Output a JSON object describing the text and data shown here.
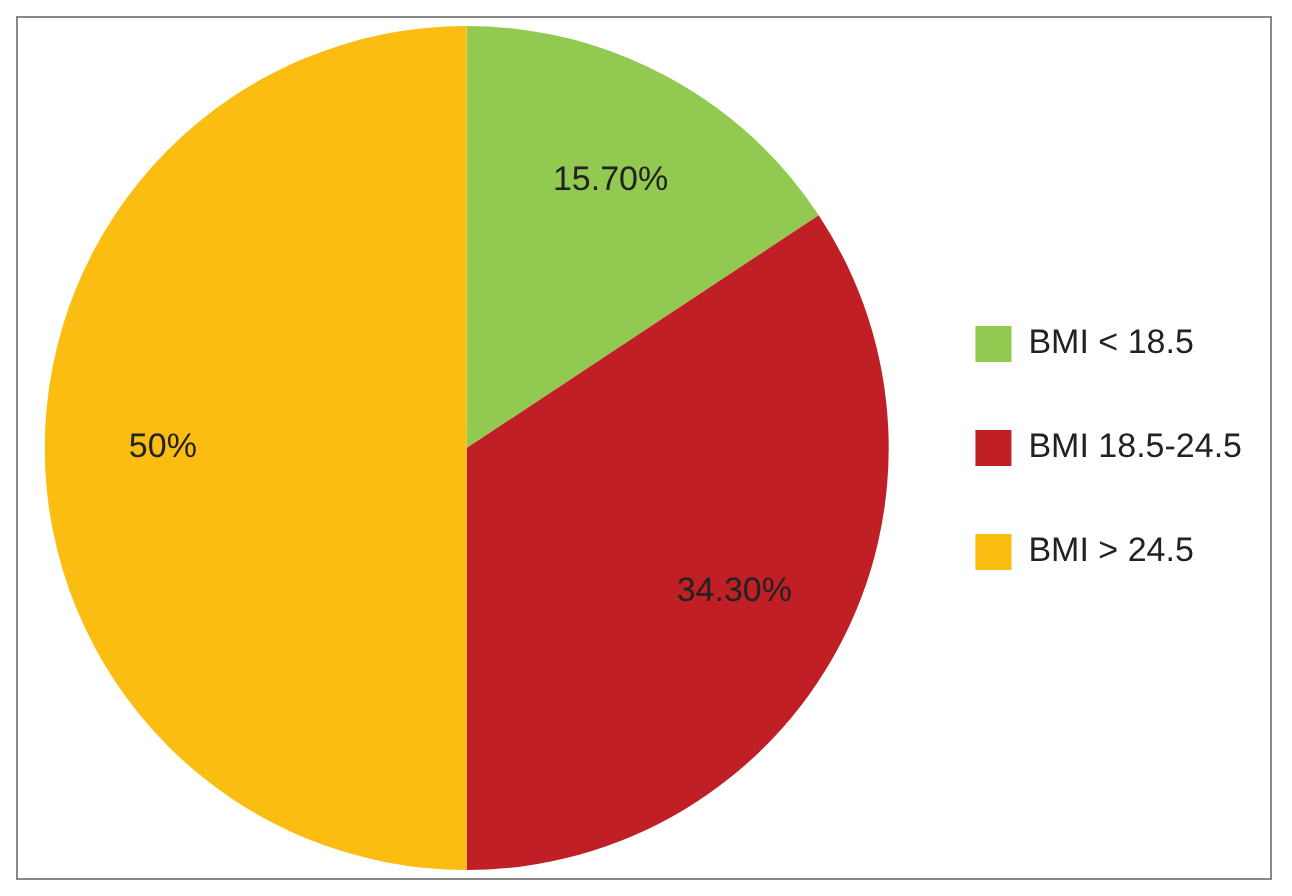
{
  "chart_data": {
    "type": "pie",
    "categories": [
      "BMI < 18.5",
      "BMI 18.5-24.5",
      "BMI > 24.5"
    ],
    "values": [
      15.7,
      34.3,
      50
    ],
    "value_labels": [
      "15.70%",
      "34.30%",
      "50%"
    ],
    "colors": [
      "#92c950",
      "#c01f26",
      "#fbbd11"
    ],
    "legend": "right"
  }
}
